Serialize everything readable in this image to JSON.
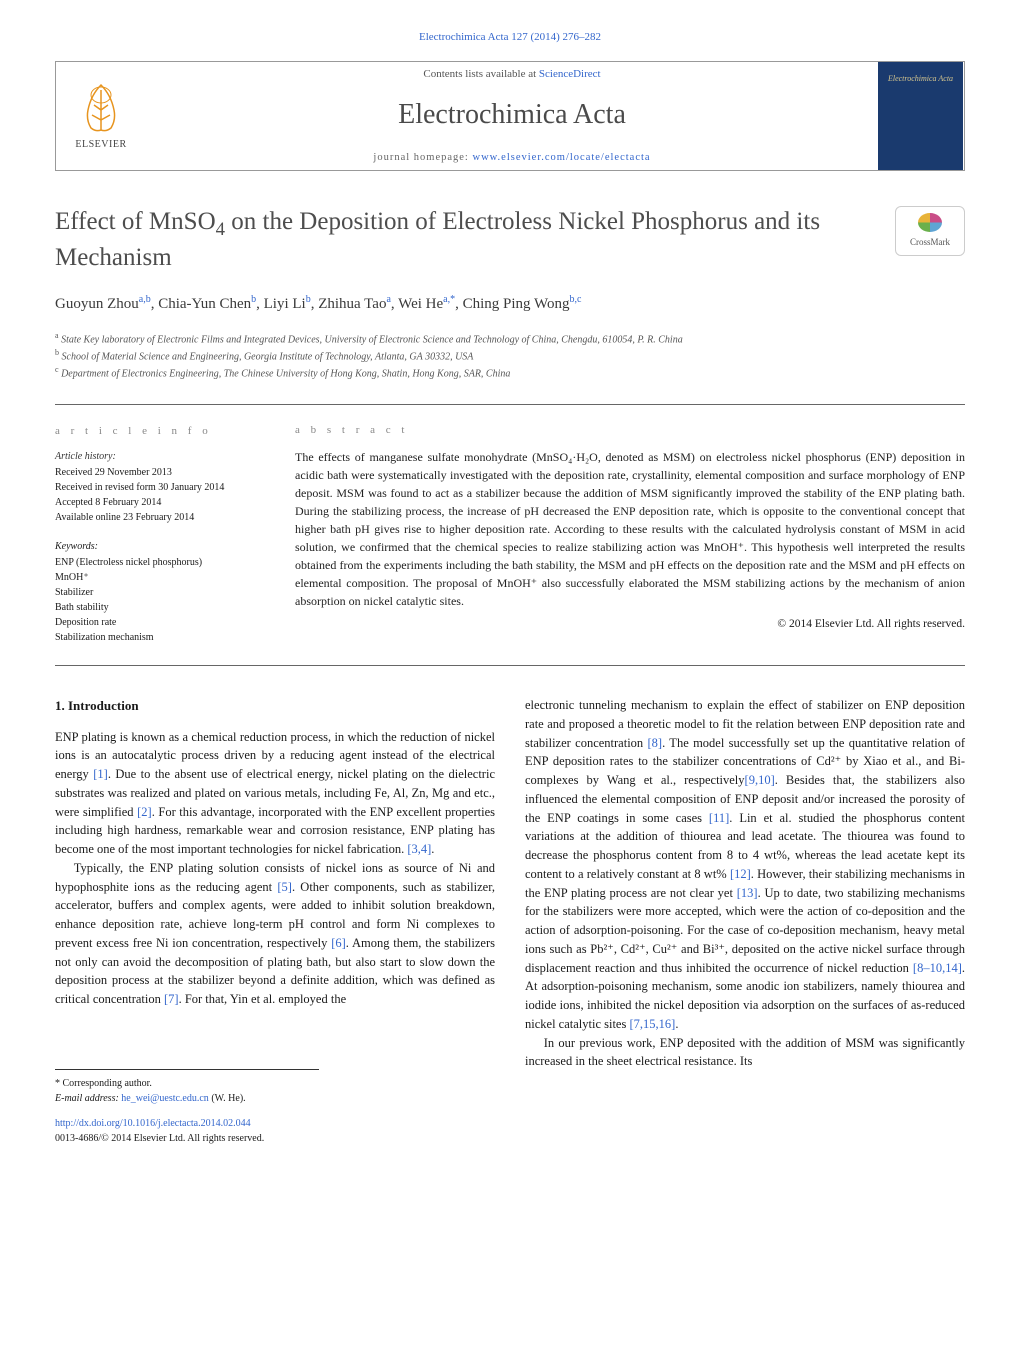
{
  "header": {
    "running_head": "Electrochimica Acta 127 (2014) 276–282",
    "contents_prefix": "Contents lists available at ",
    "contents_link": "ScienceDirect",
    "journal_name": "Electrochimica Acta",
    "homepage_prefix": "journal homepage: ",
    "homepage_url": "www.elsevier.com/locate/electacta",
    "publisher": "ELSEVIER",
    "cover_text": "Electrochimica Acta"
  },
  "crossmark": {
    "label": "CrossMark"
  },
  "title": "Effect of MnSO₄ on the Deposition of Electroless Nickel Phosphorus and its Mechanism",
  "authors_html": "Guoyun Zhou<sup>a,b</sup>, Chia-Yun Chen<sup>b</sup>, Liyi Li<sup>b</sup>, Zhihua Tao<sup>a</sup>, Wei He<sup>a,*</sup>, Ching Ping Wong<sup>b,c</sup>",
  "affiliations": [
    {
      "marker": "a",
      "text": "State Key laboratory of Electronic Films and Integrated Devices, University of Electronic Science and Technology of China, Chengdu, 610054, P. R. China"
    },
    {
      "marker": "b",
      "text": "School of Material Science and Engineering, Georgia Institute of Technology, Atlanta, GA 30332, USA"
    },
    {
      "marker": "c",
      "text": "Department of Electronics Engineering, The Chinese University of Hong Kong, Shatin, Hong Kong, SAR, China"
    }
  ],
  "article_info": {
    "heading": "a r t i c l e   i n f o",
    "history_label": "Article history:",
    "history": [
      "Received 29 November 2013",
      "Received in revised form 30 January 2014",
      "Accepted 8 February 2014",
      "Available online 23 February 2014"
    ],
    "keywords_label": "Keywords:",
    "keywords": [
      "ENP (Electroless nickel phosphorus)",
      "MnOH⁺",
      "Stabilizer",
      "Bath stability",
      "Deposition rate",
      "Stabilization mechanism"
    ]
  },
  "abstract": {
    "heading": "a b s t r a c t",
    "text": "The effects of manganese sulfate monohydrate (MnSO₄·H₂O, denoted as MSM) on electroless nickel phosphorus (ENP) deposition in acidic bath were systematically investigated with the deposition rate, crystallinity, elemental composition and surface morphology of ENP deposit. MSM was found to act as a stabilizer because the addition of MSM significantly improved the stability of the ENP plating bath. During the stabilizing process, the increase of pH decreased the ENP deposition rate, which is opposite to the conventional concept that higher bath pH gives rise to higher deposition rate. According to these results with the calculated hydrolysis constant of MSM in acid solution, we confirmed that the chemical species to realize stabilizing action was MnOH⁺. This hypothesis well interpreted the results obtained from the experiments including the bath stability, the MSM and pH effects on the deposition rate and the MSM and pH effects on elemental composition. The proposal of MnOH⁺ also successfully elaborated the MSM stabilizing actions by the mechanism of anion absorption on nickel catalytic sites.",
    "copyright": "© 2014 Elsevier Ltd. All rights reserved."
  },
  "section_heading": "1. Introduction",
  "intro_para1": "ENP plating is known as a chemical reduction process, in which the reduction of nickel ions is an autocatalytic process driven by a reducing agent instead of the electrical energy [1]. Due to the absent use of electrical energy, nickel plating on the dielectric substrates was realized and plated on various metals, including Fe, Al, Zn, Mg and etc., were simplified [2]. For this advantage, incorporated with the ENP excellent properties including high hardness, remarkable wear and corrosion resistance, ENP plating has become one of the most important technologies for nickel fabrication. [3,4].",
  "intro_para2": "Typically, the ENP plating solution consists of nickel ions as source of Ni and hypophosphite ions as the reducing agent [5]. Other components, such as stabilizer, accelerator, buffers and complex agents, were added to inhibit solution breakdown, enhance deposition rate, achieve long-term pH control and form Ni complexes to prevent excess free Ni ion concentration, respectively [6]. Among them, the stabilizers not only can avoid the decomposition of plating bath, but also start to slow down the deposition process at the stabilizer beyond a definite addition, which was defined as critical concentration [7]. For that, Yin et al. employed the",
  "intro_para3": "electronic tunneling mechanism to explain the effect of stabilizer on ENP deposition rate and proposed a theoretic model to fit the relation between ENP deposition rate and stabilizer concentration [8]. The model successfully set up the quantitative relation of ENP deposition rates to the stabilizer concentrations of Cd²⁺ by Xiao et al., and Bi-complexes by Wang et al., respectively[9,10]. Besides that, the stabilizers also influenced the elemental composition of ENP deposit and/or increased the porosity of the ENP coatings in some cases [11]. Lin et al. studied the phosphorus content variations at the addition of thiourea and lead acetate. The thiourea was found to decrease the phosphorus content from 8 to 4 wt%, whereas the lead acetate kept its content to a relatively constant at 8 wt% [12]. However, their stabilizing mechanisms in the ENP plating process are not clear yet [13]. Up to date, two stabilizing mechanisms for the stabilizers were more accepted, which were the action of co-deposition and the action of adsorption-poisoning. For the case of co-deposition mechanism, heavy metal ions such as Pb²⁺, Cd²⁺, Cu²⁺ and Bi³⁺, deposited on the active nickel surface through displacement reaction and thus inhibited the occurrence of nickel reduction [8–10,14]. At adsorption-poisoning mechanism, some anodic ion stabilizers, namely thiourea and iodide ions, inhibited the nickel deposition via adsorption on the surfaces of as-reduced nickel catalytic sites [7,15,16].",
  "intro_para4": "In our previous work, ENP deposited with the addition of MSM was significantly increased in the sheet electrical resistance. Its",
  "footer": {
    "corr_label": "* Corresponding author.",
    "email_label": "E-mail address: ",
    "email": "he_wei@uestc.edu.cn",
    "email_suffix": " (W. He).",
    "doi": "http://dx.doi.org/10.1016/j.electacta.2014.02.044",
    "issn_line": "0013-4686/© 2014 Elsevier Ltd. All rights reserved."
  },
  "colors": {
    "link": "#3366cc",
    "text": "#1a1a1a",
    "muted": "#555555",
    "rule": "#666666",
    "cover_bg": "#1a3a6e",
    "cover_text": "#d4c58e"
  }
}
